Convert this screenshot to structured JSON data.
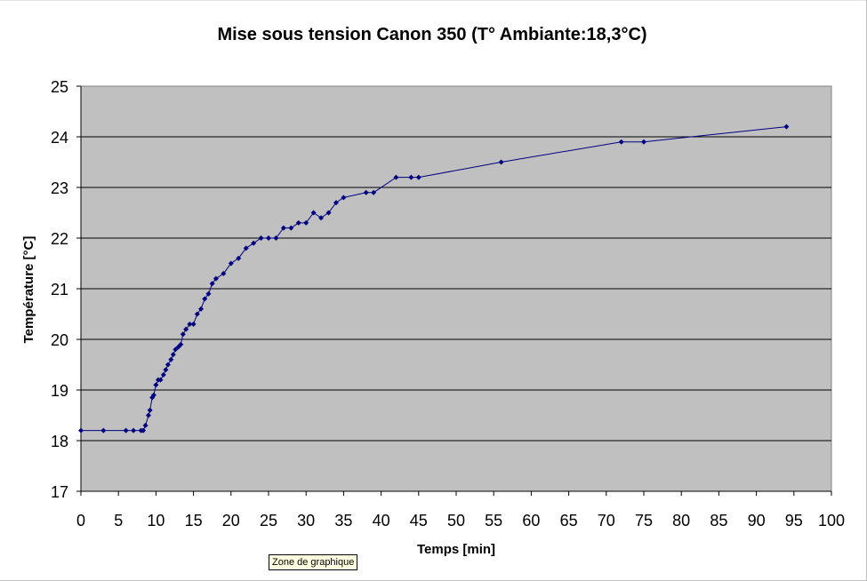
{
  "chart_data": {
    "type": "line",
    "title": "Mise sous tension Canon 350 (T° Ambiante:18,3°C)",
    "xlabel": "Temps [min]",
    "ylabel": "Température [°C]",
    "xlim": [
      0,
      100
    ],
    "ylim": [
      17,
      25
    ],
    "xticks": [
      "0",
      "5",
      "10",
      "15",
      "20",
      "25",
      "30",
      "35",
      "40",
      "45",
      "50",
      "55",
      "60",
      "65",
      "70",
      "75",
      "80",
      "85",
      "90",
      "95",
      "100"
    ],
    "yticks": [
      "17",
      "18",
      "19",
      "20",
      "21",
      "22",
      "23",
      "24",
      "25"
    ],
    "grid": "horizontal",
    "plot_background": "#c0c0c0",
    "series_color": "#000080",
    "series": [
      {
        "x": [
          0,
          3,
          6,
          7,
          8,
          8.3,
          8.6,
          9,
          9.2,
          9.5,
          9.7,
          10,
          10.3,
          10.6,
          11,
          11.3,
          11.6,
          12,
          12.3,
          12.6,
          13,
          13.3,
          13.6,
          14,
          14.5,
          15,
          15.5,
          16,
          16.5,
          17,
          17.5,
          18,
          19,
          20,
          21,
          22,
          23,
          24,
          25,
          26,
          27,
          28,
          29,
          30,
          31,
          32,
          33,
          34,
          35,
          38,
          39,
          42,
          44,
          45,
          56,
          72,
          75,
          94
        ],
        "y": [
          18.2,
          18.2,
          18.2,
          18.2,
          18.2,
          18.2,
          18.3,
          18.5,
          18.6,
          18.85,
          18.9,
          19.1,
          19.2,
          19.2,
          19.3,
          19.4,
          19.5,
          19.6,
          19.7,
          19.8,
          19.85,
          19.9,
          20.1,
          20.2,
          20.3,
          20.3,
          20.5,
          20.6,
          20.8,
          20.9,
          21.1,
          21.2,
          21.3,
          21.5,
          21.6,
          21.8,
          21.9,
          22.0,
          22.0,
          22.0,
          22.2,
          22.2,
          22.3,
          22.3,
          22.5,
          22.4,
          22.5,
          22.7,
          22.8,
          22.9,
          22.9,
          23.2,
          23.2,
          23.2,
          23.5,
          23.9,
          23.9,
          24.2
        ]
      }
    ]
  },
  "tooltip": {
    "label": "Zone de graphique"
  }
}
